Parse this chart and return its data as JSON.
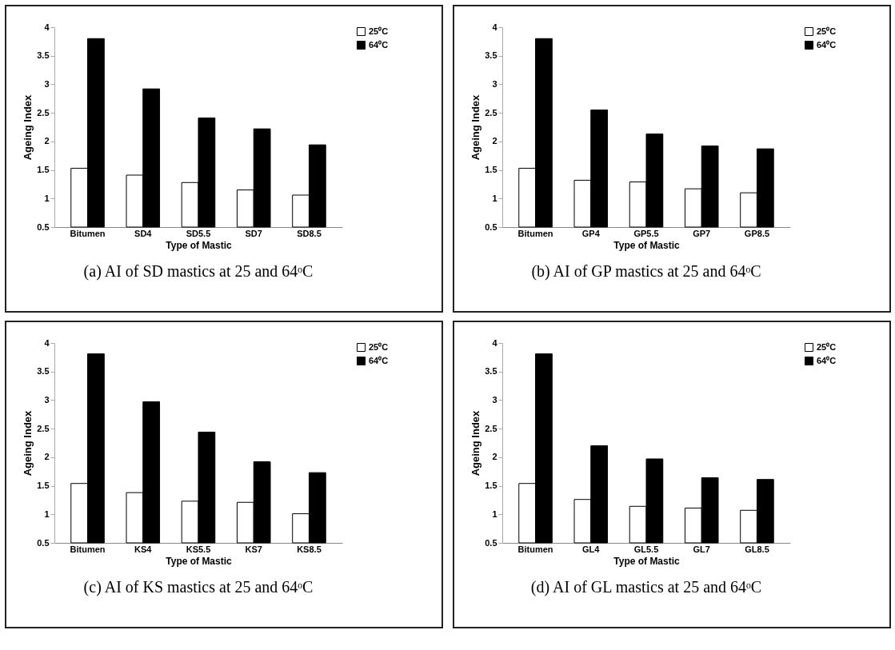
{
  "chart_data": [
    {
      "type": "bar",
      "title": "(a) AI of SD mastics at 25 and 64ᵒC",
      "xlabel": "Type of Mastic",
      "ylabel": "Ageing Index",
      "categories": [
        "Bitumen",
        "SD4",
        "SD5.5",
        "SD7",
        "SD8.5"
      ],
      "series": [
        {
          "name": "25⁰C",
          "color": "#ffffff",
          "values": [
            1.53,
            1.41,
            1.28,
            1.15,
            1.06
          ]
        },
        {
          "name": "64⁰C",
          "color": "#000000",
          "values": [
            3.8,
            2.92,
            2.41,
            2.22,
            1.94
          ]
        }
      ],
      "ylim": [
        0.5,
        4
      ],
      "yticks": [
        0.5,
        1,
        1.5,
        2,
        2.5,
        3,
        3.5,
        4
      ],
      "legend": "right"
    },
    {
      "type": "bar",
      "title": "(b) AI of GP mastics at 25 and 64ᵒC",
      "xlabel": "Type of Mastic",
      "ylabel": "Ageing Index",
      "categories": [
        "Bitumen",
        "GP4",
        "GP5.5",
        "GP7",
        "GP8.5"
      ],
      "series": [
        {
          "name": "25⁰C",
          "color": "#ffffff",
          "values": [
            1.53,
            1.32,
            1.29,
            1.17,
            1.1
          ]
        },
        {
          "name": "64⁰C",
          "color": "#000000",
          "values": [
            3.8,
            2.55,
            2.13,
            1.92,
            1.87
          ]
        }
      ],
      "ylim": [
        0.5,
        4
      ],
      "yticks": [
        0.5,
        1,
        1.5,
        2,
        2.5,
        3,
        3.5,
        4
      ],
      "legend": "right"
    },
    {
      "type": "bar",
      "title": "(c) AI of KS mastics at 25 and 64ᵒC",
      "xlabel": "Type of Mastic",
      "ylabel": "Ageing Index",
      "categories": [
        "Bitumen",
        "KS4",
        "KS5.5",
        "KS7",
        "KS8.5"
      ],
      "series": [
        {
          "name": "25⁰C",
          "color": "#ffffff",
          "values": [
            1.54,
            1.38,
            1.23,
            1.21,
            1.01
          ]
        },
        {
          "name": "64⁰C",
          "color": "#000000",
          "values": [
            3.81,
            2.97,
            2.44,
            1.92,
            1.73
          ]
        }
      ],
      "ylim": [
        0.5,
        4
      ],
      "yticks": [
        0.5,
        1,
        1.5,
        2,
        2.5,
        3,
        3.5,
        4
      ],
      "legend": "right"
    },
    {
      "type": "bar",
      "title": "(d) AI of GL mastics at 25 and 64ᵒC",
      "xlabel": "Type of Mastic",
      "ylabel": "Ageing Index",
      "categories": [
        "Bitumen",
        "GL4",
        "GL5.5",
        "GL7",
        "GL8.5"
      ],
      "series": [
        {
          "name": "25⁰C",
          "color": "#ffffff",
          "values": [
            1.54,
            1.26,
            1.14,
            1.11,
            1.07
          ]
        },
        {
          "name": "64⁰C",
          "color": "#000000",
          "values": [
            3.81,
            2.2,
            1.97,
            1.64,
            1.61
          ]
        }
      ],
      "ylim": [
        0.5,
        4
      ],
      "yticks": [
        0.5,
        1,
        1.5,
        2,
        2.5,
        3,
        3.5,
        4
      ],
      "legend": "right"
    }
  ]
}
